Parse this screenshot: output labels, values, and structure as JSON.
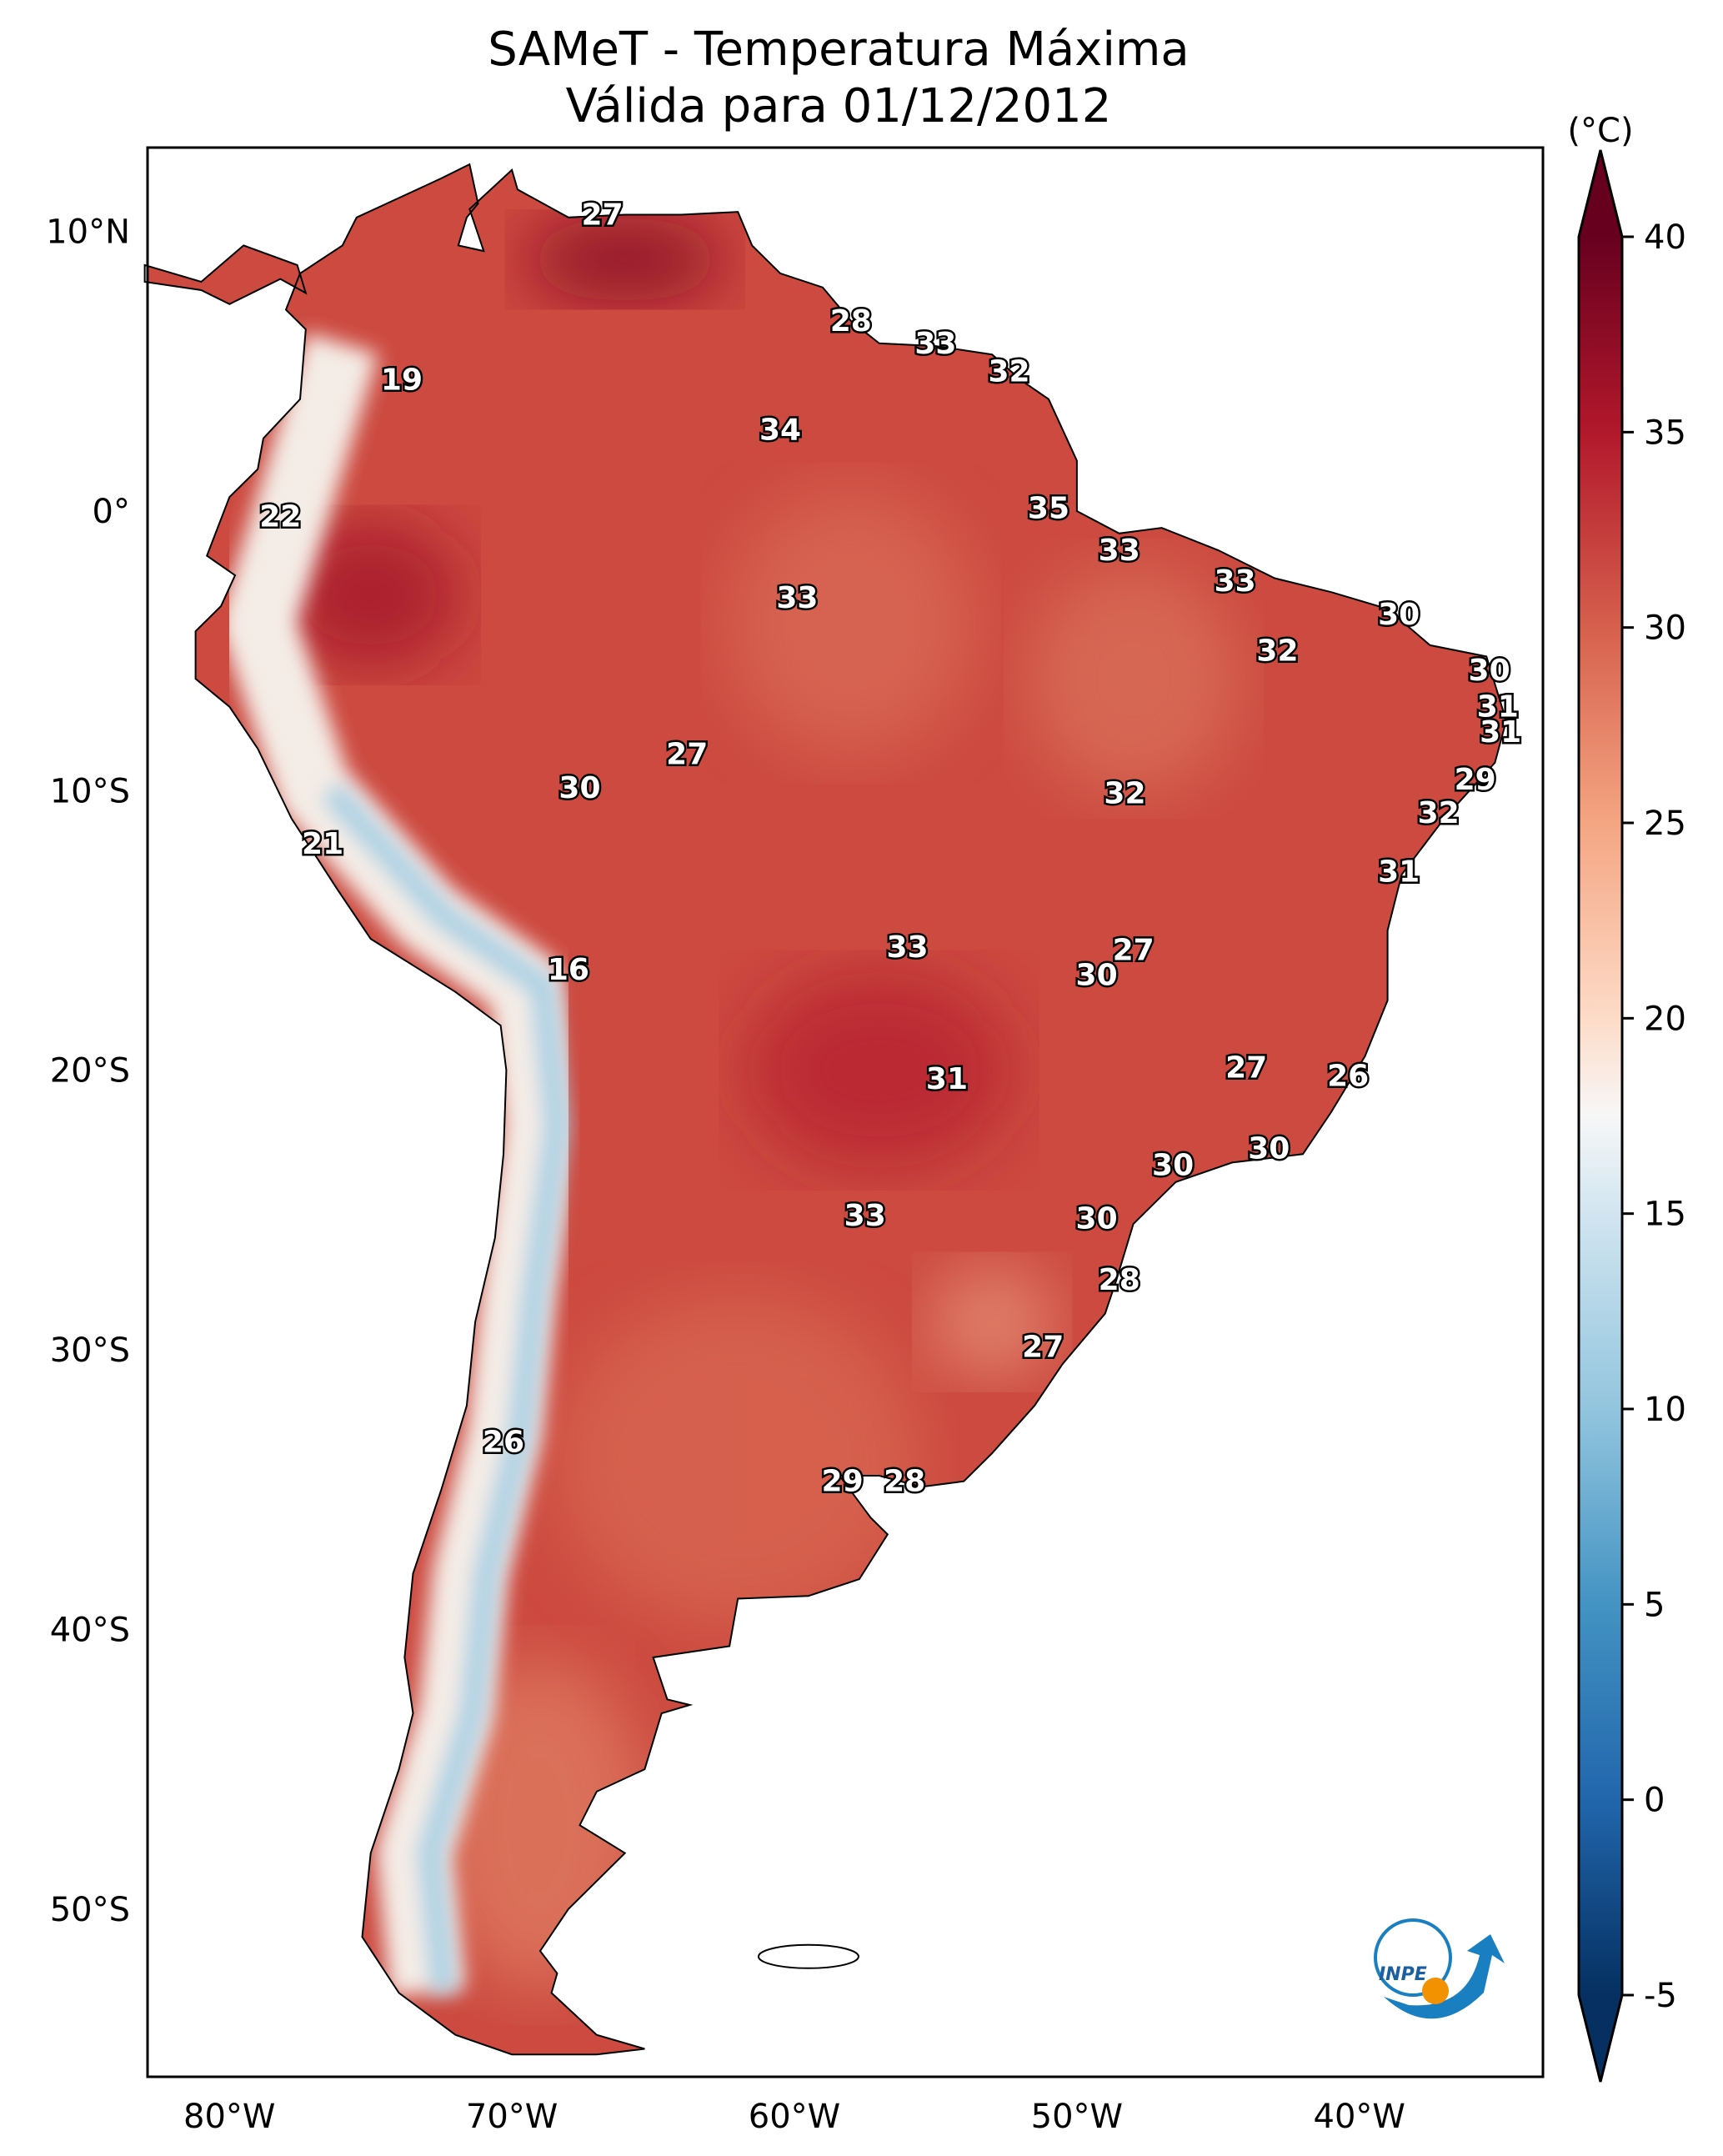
{
  "title": "SAMeT - Temperatura Máxima",
  "subtitle": "Válida para 01/12/2012",
  "colorbar": {
    "unit_label": "(°C)",
    "ticks": [
      "40",
      "35",
      "30",
      "25",
      "20",
      "15",
      "10",
      "5",
      "0",
      "-5"
    ],
    "tick_values": [
      40,
      35,
      30,
      25,
      20,
      15,
      10,
      5,
      0,
      -5
    ],
    "range": [
      -5,
      40
    ],
    "extend": "both",
    "colormap": "RdBu_r"
  },
  "axes": {
    "lon_ticks": [
      "80°W",
      "70°W",
      "60°W",
      "50°W",
      "40°W"
    ],
    "lon_values": [
      -80,
      -70,
      -60,
      -50,
      -40
    ],
    "lat_ticks": [
      "10°N",
      "0°",
      "10°S",
      "20°S",
      "30°S",
      "40°S",
      "50°S"
    ],
    "lat_values": [
      10,
      0,
      -10,
      -20,
      -30,
      -40,
      -50
    ],
    "lon_range": [
      -82.9,
      -33.5
    ],
    "lat_range": [
      -56,
      13
    ]
  },
  "logo_text": "INPE",
  "chart_data": {
    "type": "heatmap",
    "title": "SAMeT - Temperatura Máxima",
    "subtitle": "Válida para 01/12/2012",
    "variable": "Maximum temperature (°C)",
    "station_labels": [
      {
        "text": "27",
        "lon": -66.8,
        "lat": 10.6
      },
      {
        "text": "28",
        "lon": -58.0,
        "lat": 6.8
      },
      {
        "text": "33",
        "lon": -55.0,
        "lat": 6.0
      },
      {
        "text": "32",
        "lon": -52.4,
        "lat": 5.0
      },
      {
        "text": "19",
        "lon": -73.9,
        "lat": 4.7
      },
      {
        "text": "34",
        "lon": -60.5,
        "lat": 2.9
      },
      {
        "text": "35",
        "lon": -51.0,
        "lat": 0.1
      },
      {
        "text": "22",
        "lon": -78.2,
        "lat": -0.2
      },
      {
        "text": "33",
        "lon": -48.5,
        "lat": -1.4
      },
      {
        "text": "33",
        "lon": -44.4,
        "lat": -2.5
      },
      {
        "text": "33",
        "lon": -59.9,
        "lat": -3.1
      },
      {
        "text": "30",
        "lon": -38.6,
        "lat": -3.7
      },
      {
        "text": "32",
        "lon": -42.9,
        "lat": -5.0
      },
      {
        "text": "30",
        "lon": -35.4,
        "lat": -5.7
      },
      {
        "text": "31",
        "lon": -35.1,
        "lat": -7.0
      },
      {
        "text": "31",
        "lon": -35.0,
        "lat": -7.9
      },
      {
        "text": "27",
        "lon": -63.8,
        "lat": -8.7
      },
      {
        "text": "29",
        "lon": -35.9,
        "lat": -9.6
      },
      {
        "text": "30",
        "lon": -67.6,
        "lat": -9.9
      },
      {
        "text": "32",
        "lon": -48.3,
        "lat": -10.1
      },
      {
        "text": "32",
        "lon": -37.2,
        "lat": -10.8
      },
      {
        "text": "21",
        "lon": -76.7,
        "lat": -11.9
      },
      {
        "text": "31",
        "lon": -38.6,
        "lat": -12.9
      },
      {
        "text": "33",
        "lon": -56.0,
        "lat": -15.6
      },
      {
        "text": "27",
        "lon": -48.0,
        "lat": -15.7
      },
      {
        "text": "16",
        "lon": -68.0,
        "lat": -16.4
      },
      {
        "text": "30",
        "lon": -49.3,
        "lat": -16.6
      },
      {
        "text": "27",
        "lon": -44.0,
        "lat": -19.9
      },
      {
        "text": "26",
        "lon": -40.4,
        "lat": -20.2
      },
      {
        "text": "31",
        "lon": -54.6,
        "lat": -20.3
      },
      {
        "text": "30",
        "lon": -43.2,
        "lat": -22.8
      },
      {
        "text": "30",
        "lon": -46.6,
        "lat": -23.4
      },
      {
        "text": "33",
        "lon": -57.5,
        "lat": -25.2
      },
      {
        "text": "30",
        "lon": -49.3,
        "lat": -25.3
      },
      {
        "text": "28",
        "lon": -48.5,
        "lat": -27.5
      },
      {
        "text": "27",
        "lon": -51.2,
        "lat": -29.9
      },
      {
        "text": "26",
        "lon": -70.3,
        "lat": -33.3
      },
      {
        "text": "29",
        "lon": -58.3,
        "lat": -34.7
      },
      {
        "text": "28",
        "lon": -56.1,
        "lat": -34.7
      }
    ]
  },
  "colors": {
    "hot": "#67001f",
    "warm": "#c8413d",
    "mild": "#f4a582",
    "neutral": "#f7f7f7",
    "cool": "#92c5de",
    "cold": "#053061",
    "logo_blue": "#1a7fc1",
    "logo_orange": "#f39200"
  }
}
